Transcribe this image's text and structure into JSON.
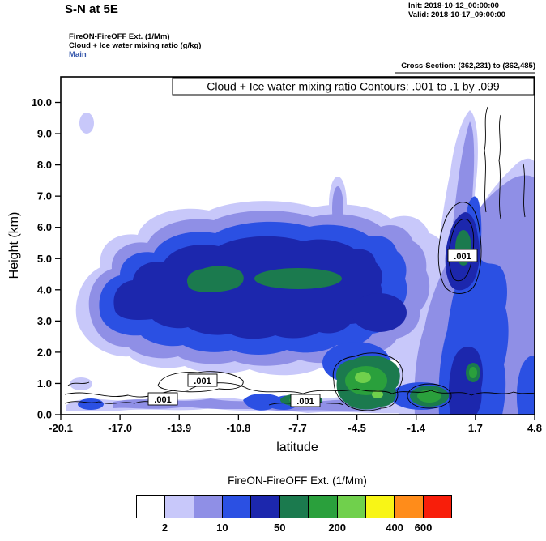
{
  "header": {
    "title": "S-N at 5E",
    "init_label": "Init: 2018-10-12_00:00:00",
    "valid_label": "Valid: 2018-10-17_09:00:00",
    "experiment_label": "FireON-FireOFF Ext.  (1/Mm)",
    "field_label": "Cloud + Ice water mixing ratio  (g/kg)",
    "grid_label": "Main",
    "cross_section_label": "Cross-Section: (362,231) to (362,485)"
  },
  "plot": {
    "inner_title": "Cloud + Ice water mixing ratio Contours: .001 to .1 by .099",
    "xlabel": "latitude",
    "ylabel": "Height (km)"
  },
  "chart_data": {
    "type": "filled-contour-cross-section",
    "title": "Cloud + Ice water mixing ratio Contours: .001 to .1 by .099",
    "xlabel": "latitude",
    "ylabel": "Height (km)",
    "x_tick_labels": [
      "-20.1",
      "-17.0",
      "-13.9",
      "-10.8",
      "-7.7",
      "-4.5",
      "-1.4",
      "1.7",
      "4.8"
    ],
    "y_tick_labels": [
      "0.0",
      "1.0",
      "2.0",
      "3.0",
      "4.0",
      "5.0",
      "6.0",
      "7.0",
      "8.0",
      "9.0",
      "10.0"
    ],
    "xlim": [
      -20.1,
      4.8
    ],
    "ylim_km": [
      0,
      10.8
    ],
    "grid": false,
    "filled_variable": "FireON-FireOFF Ext. (1/Mm)",
    "filled_level_labels": [
      2,
      10,
      50,
      200,
      400,
      600
    ],
    "contour_variable": "Cloud + Ice water mixing ratio (g/kg)",
    "contour_levels": [
      0.001,
      0.1
    ],
    "contour_interval": 0.099,
    "contour_line_label": ".001",
    "features": [
      {
        "name": "elevated-aerosol-band",
        "lat_range": [
          -18.5,
          -3.5
        ],
        "height_km_range": [
          1.5,
          6.5
        ],
        "peak": "green core ~50-200 1/Mm near 3.5-4 km between lat -17 and -8"
      },
      {
        "name": "convective-column-right",
        "lat_range": [
          -2.5,
          4.8
        ],
        "height_km_range": [
          0,
          10.5
        ],
        "peak": "dark-blue core with green center ~50-200 1/Mm near 5-6 km at lat ~1, cloud .001 contour loop around it"
      },
      {
        "name": "boundary-layer-band",
        "lat_range": [
          -20.1,
          4.8
        ],
        "height_km_range": [
          0,
          1.2
        ],
        "peak": "green/light-green patches 200-400 1/Mm near lat -5 to -2 below 1 km; .001 cloud contour lines along ~0.5 km"
      }
    ]
  },
  "colorbar": {
    "title": "FireON-FireOFF Ext.  (1/Mm)",
    "colors": [
      "#ffffff",
      "#c8c8fa",
      "#8f8fe6",
      "#2b50e3",
      "#1c27ad",
      "#1b7a4e",
      "#2aa03c",
      "#70d04c",
      "#f8f516",
      "#ff8c1a",
      "#f81e0a"
    ],
    "tick_labels": [
      "2",
      "10",
      "50",
      "200",
      "400",
      "600"
    ],
    "tick_boundary_indices": [
      1,
      3,
      5,
      7,
      9,
      10
    ]
  },
  "colors": {
    "background": "#ffffff",
    "frame": "#000000",
    "grid_label_color": "#3355aa"
  }
}
